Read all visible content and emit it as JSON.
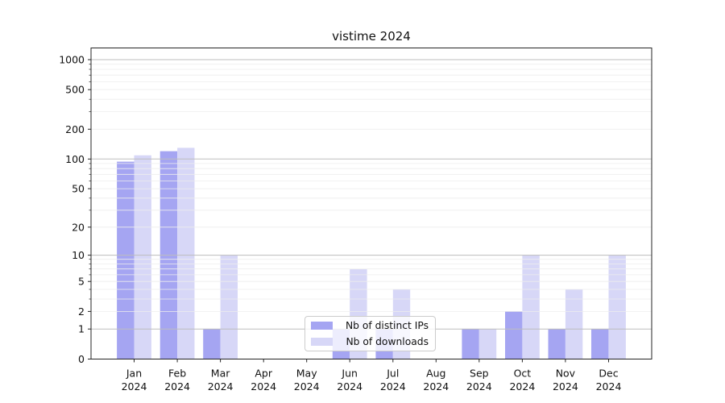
{
  "title": "vistime 2024",
  "chart_data": {
    "type": "bar",
    "title": "vistime 2024",
    "categories": [
      "Jan 2024",
      "Feb 2024",
      "Mar 2024",
      "Apr 2024",
      "May 2024",
      "Jun 2024",
      "Jul 2024",
      "Aug 2024",
      "Sep 2024",
      "Oct 2024",
      "Nov 2024",
      "Dec 2024"
    ],
    "month_labels": [
      "Jan",
      "Feb",
      "Mar",
      "Apr",
      "May",
      "Jun",
      "Jul",
      "Aug",
      "Sep",
      "Oct",
      "Nov",
      "Dec"
    ],
    "year_label": "2024",
    "series": [
      {
        "name": "Nb of distinct IPs",
        "color": "#a5a5f2",
        "values": [
          94,
          120,
          1,
          0,
          0,
          1,
          1,
          0,
          1,
          2,
          1,
          1
        ]
      },
      {
        "name": "Nb of downloads",
        "color": "#d7d7f7",
        "values": [
          109,
          130,
          10,
          0,
          0,
          7,
          4,
          0,
          1,
          10,
          4,
          10
        ]
      }
    ],
    "xlabel": "",
    "ylabel": "",
    "y_scale": "log1p",
    "ylim": [
      0,
      1310
    ],
    "y_ticks": [
      0,
      1,
      2,
      5,
      10,
      20,
      50,
      100,
      200,
      500,
      1000
    ],
    "y_minor_gridlines": [
      2,
      3,
      4,
      5,
      6,
      7,
      8,
      9,
      20,
      30,
      40,
      50,
      60,
      70,
      80,
      90,
      200,
      300,
      400,
      500,
      600,
      700,
      800,
      900
    ],
    "grid": {
      "major_color": "#bdbdbd",
      "minor_color": "#ededed",
      "enabled": true
    },
    "legend_position": "lower center"
  },
  "colors": {
    "background": "#ffffff",
    "spine": "#262626",
    "tick_text": "#111111",
    "bar_distinct_ips": "#a5a5f2",
    "bar_downloads": "#d7d7f7"
  }
}
